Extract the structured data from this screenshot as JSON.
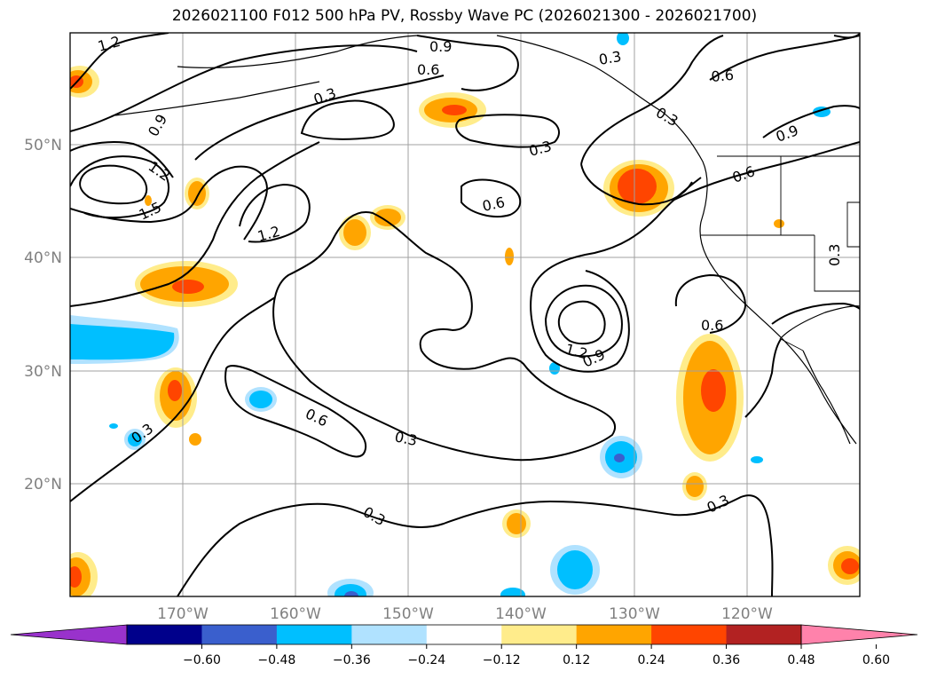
{
  "title": "2026021100 F012 500 hPa PV, Rossby Wave PC (2026021300 - 2026021700)",
  "map": {
    "lon_range": [
      -180,
      -110
    ],
    "lat_range": [
      10,
      60
    ],
    "lat_labels": [
      "50°N",
      "40°N",
      "30°N",
      "20°N"
    ],
    "lon_labels": [
      "170°W",
      "160°W",
      "150°W",
      "140°W",
      "130°W",
      "120°W"
    ],
    "grid": true
  },
  "contour_labels": [
    "1.2",
    "0.9",
    "0.3",
    "0.6",
    "0.3",
    "0.6",
    "0.3",
    "0.9",
    "0.3",
    "0.9",
    "1.2",
    "1.5",
    "0.6",
    "1.2",
    "0.6",
    "0.3",
    "1.2",
    "0.9",
    "0.6",
    "0.6",
    "0.3",
    "0.3",
    "0.3",
    "0.3"
  ],
  "colorbar": {
    "ticks": [
      "−0.60",
      "−0.48",
      "−0.36",
      "−0.24",
      "−0.12",
      "0.12",
      "0.24",
      "0.36",
      "0.48",
      "0.60"
    ],
    "colors": [
      "#9932cc",
      "#00008b",
      "#3a5fcd",
      "#00bfff",
      "#b0e2ff",
      "#ffffff",
      "#ffec8b",
      "#ffa500",
      "#ff4500",
      "#b22222",
      "#ff82ab"
    ]
  }
}
